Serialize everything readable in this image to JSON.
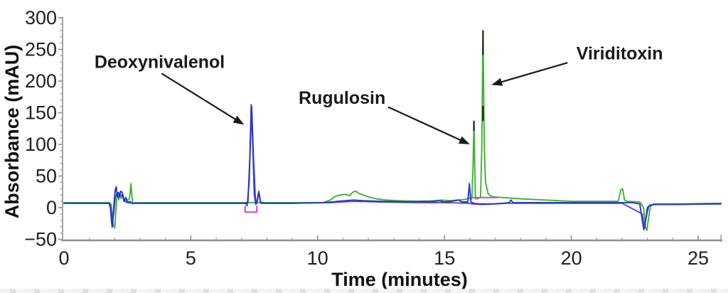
{
  "figure": {
    "kind": "HPLC chromatogram",
    "bottom_edge_note": "faint cropped content edge"
  },
  "chart_data": {
    "type": "line",
    "title": "",
    "xlabel": "Time (minutes)",
    "ylabel": "Absorbance (mAU)",
    "xlim": [
      0,
      25.9
    ],
    "ylim": [
      -50,
      300
    ],
    "x_ticks_major": [
      0,
      5,
      10,
      15,
      20,
      25
    ],
    "x_tick_labels": [
      "0",
      "5",
      "10",
      "15",
      "20",
      "25"
    ],
    "x_minor_step": 1,
    "y_ticks_major": [
      -50,
      0,
      50,
      100,
      150,
      200,
      250,
      300
    ],
    "y_tick_labels": [
      "−50",
      "0",
      "50",
      "100",
      "150",
      "200",
      "250",
      "300"
    ],
    "y_minor_step": 10,
    "grid": false,
    "legend": "none",
    "colors": {
      "axis": "#a3a3a3",
      "axis_bottom": "#8f8f8f",
      "tick": "#9a9a9a",
      "tick_label": "#1f1f1f",
      "annotation_text": "#1a1a1a",
      "arrow": "#1a1a1a"
    },
    "series": [
      {
        "name": "green-trace",
        "color": "#3cb42c",
        "points": [
          [
            0,
            8
          ],
          [
            1.8,
            8
          ],
          [
            1.86,
            5
          ],
          [
            1.9,
            -12
          ],
          [
            1.95,
            -28
          ],
          [
            2.0,
            -32
          ],
          [
            2.04,
            -8
          ],
          [
            2.08,
            14
          ],
          [
            2.12,
            20
          ],
          [
            2.16,
            12
          ],
          [
            2.2,
            24
          ],
          [
            2.25,
            14
          ],
          [
            2.3,
            22
          ],
          [
            2.36,
            16
          ],
          [
            2.42,
            10
          ],
          [
            2.5,
            12
          ],
          [
            2.58,
            14
          ],
          [
            2.64,
            38
          ],
          [
            2.68,
            18
          ],
          [
            2.72,
            6
          ],
          [
            2.8,
            8
          ],
          [
            4,
            8
          ],
          [
            6,
            8
          ],
          [
            8,
            8
          ],
          [
            9.5,
            8
          ],
          [
            10.2,
            8
          ],
          [
            10.5,
            12
          ],
          [
            10.7,
            18
          ],
          [
            10.9,
            20
          ],
          [
            11.1,
            21
          ],
          [
            11.25,
            19
          ],
          [
            11.4,
            25
          ],
          [
            11.5,
            26
          ],
          [
            11.65,
            22
          ],
          [
            11.8,
            20
          ],
          [
            12.0,
            17
          ],
          [
            12.3,
            14
          ],
          [
            12.7,
            12
          ],
          [
            13.2,
            11
          ],
          [
            14.0,
            10
          ],
          [
            14.6,
            11
          ],
          [
            14.9,
            12
          ],
          [
            15.2,
            11
          ],
          [
            15.5,
            12
          ],
          [
            15.8,
            13
          ],
          [
            16.0,
            15
          ],
          [
            16.08,
            14
          ],
          [
            16.13,
            70
          ],
          [
            16.16,
            137
          ],
          [
            16.19,
            70
          ],
          [
            16.22,
            14
          ],
          [
            16.3,
            14
          ],
          [
            16.42,
            16
          ],
          [
            16.47,
            90
          ],
          [
            16.52,
            280
          ],
          [
            16.57,
            95
          ],
          [
            16.62,
            40
          ],
          [
            16.72,
            22
          ],
          [
            16.85,
            18
          ],
          [
            17.0,
            17
          ],
          [
            17.3,
            16
          ],
          [
            17.6,
            15
          ],
          [
            18.0,
            14
          ],
          [
            18.5,
            13
          ],
          [
            19.0,
            12
          ],
          [
            20.0,
            10
          ],
          [
            21.0,
            10
          ],
          [
            21.85,
            10
          ],
          [
            21.95,
            28
          ],
          [
            22.02,
            30
          ],
          [
            22.1,
            12
          ],
          [
            22.2,
            10
          ],
          [
            22.7,
            9
          ],
          [
            22.85,
            0
          ],
          [
            22.92,
            -30
          ],
          [
            22.98,
            -36
          ],
          [
            23.05,
            -15
          ],
          [
            23.12,
            2
          ],
          [
            23.25,
            6
          ],
          [
            23.6,
            6
          ],
          [
            24.5,
            6
          ],
          [
            25.9,
            7
          ]
        ]
      },
      {
        "name": "purple-trace",
        "color": "#6240d2",
        "points": [
          [
            0,
            7
          ],
          [
            1.8,
            7
          ],
          [
            1.86,
            -5
          ],
          [
            1.9,
            -25
          ],
          [
            1.96,
            -10
          ],
          [
            2.02,
            15
          ],
          [
            2.08,
            22
          ],
          [
            2.14,
            16
          ],
          [
            2.2,
            20
          ],
          [
            2.3,
            19
          ],
          [
            2.4,
            10
          ],
          [
            2.5,
            8
          ],
          [
            2.7,
            7
          ],
          [
            4,
            7
          ],
          [
            6,
            7
          ],
          [
            7.15,
            7
          ],
          [
            7.22,
            3
          ],
          [
            7.3,
            40
          ],
          [
            7.38,
            163
          ],
          [
            7.44,
            100
          ],
          [
            7.5,
            20
          ],
          [
            7.56,
            5
          ],
          [
            7.62,
            8
          ],
          [
            7.68,
            26
          ],
          [
            7.76,
            7
          ],
          [
            8,
            7
          ],
          [
            9,
            7
          ],
          [
            10.5,
            8
          ],
          [
            11.4,
            10
          ],
          [
            12.5,
            9
          ],
          [
            14,
            8
          ],
          [
            15,
            8
          ],
          [
            15.9,
            7
          ],
          [
            16.1,
            6
          ],
          [
            16.5,
            5
          ],
          [
            17,
            6
          ],
          [
            17.5,
            7
          ],
          [
            18,
            7
          ],
          [
            20,
            7
          ],
          [
            22,
            7
          ],
          [
            22.8,
            -10
          ],
          [
            22.88,
            -33
          ],
          [
            22.95,
            -15
          ],
          [
            23.05,
            2
          ],
          [
            23.2,
            5
          ],
          [
            24,
            5
          ],
          [
            25.9,
            6
          ]
        ]
      },
      {
        "name": "blue-trace",
        "color": "#2737c6",
        "points": [
          [
            0,
            7
          ],
          [
            1.78,
            7
          ],
          [
            1.83,
            0
          ],
          [
            1.87,
            -20
          ],
          [
            1.9,
            -31
          ],
          [
            1.94,
            -12
          ],
          [
            1.98,
            10
          ],
          [
            2.02,
            28
          ],
          [
            2.06,
            33
          ],
          [
            2.1,
            18
          ],
          [
            2.14,
            24
          ],
          [
            2.18,
            17
          ],
          [
            2.24,
            26
          ],
          [
            2.3,
            24
          ],
          [
            2.36,
            10
          ],
          [
            2.44,
            16
          ],
          [
            2.5,
            8
          ],
          [
            2.58,
            10
          ],
          [
            2.66,
            8
          ],
          [
            2.75,
            7
          ],
          [
            4,
            7
          ],
          [
            6,
            7
          ],
          [
            7.1,
            7
          ],
          [
            7.25,
            8
          ],
          [
            7.33,
            80
          ],
          [
            7.4,
            160
          ],
          [
            7.47,
            80
          ],
          [
            7.55,
            8
          ],
          [
            7.6,
            10
          ],
          [
            7.68,
            25
          ],
          [
            7.75,
            8
          ],
          [
            7.9,
            7
          ],
          [
            9,
            7
          ],
          [
            10.3,
            8
          ],
          [
            10.8,
            10
          ],
          [
            11.4,
            12
          ],
          [
            11.8,
            11
          ],
          [
            12.5,
            10
          ],
          [
            13.5,
            9
          ],
          [
            14.15,
            10
          ],
          [
            14.4,
            9
          ],
          [
            14.8,
            11
          ],
          [
            15.0,
            9
          ],
          [
            15.3,
            10
          ],
          [
            15.55,
            12
          ],
          [
            15.7,
            9
          ],
          [
            15.92,
            9
          ],
          [
            15.98,
            38
          ],
          [
            16.04,
            9
          ],
          [
            16.15,
            7
          ],
          [
            16.35,
            6
          ],
          [
            16.6,
            6
          ],
          [
            16.9,
            6
          ],
          [
            17.3,
            7
          ],
          [
            17.55,
            8
          ],
          [
            17.62,
            12
          ],
          [
            17.7,
            8
          ],
          [
            18.0,
            8
          ],
          [
            19,
            8
          ],
          [
            20,
            8
          ],
          [
            21,
            8
          ],
          [
            22,
            8
          ],
          [
            22.4,
            8
          ],
          [
            22.7,
            6
          ],
          [
            22.8,
            -20
          ],
          [
            22.86,
            -35
          ],
          [
            22.93,
            -20
          ],
          [
            23.0,
            0
          ],
          [
            23.1,
            4
          ],
          [
            23.3,
            5
          ],
          [
            24,
            5
          ],
          [
            25,
            6
          ],
          [
            25.9,
            6
          ]
        ]
      }
    ],
    "integration_marks": [
      {
        "name": "deoxynivalenol-integration-bracket",
        "color": "#d44fd4",
        "points": [
          [
            7.14,
            2
          ],
          [
            7.14,
            -7
          ],
          [
            7.6,
            -7
          ],
          [
            7.6,
            2
          ]
        ]
      },
      {
        "name": "rugulosin-viriditoxin-integration-baseline",
        "color": "#d44fd4",
        "points": [
          [
            16.08,
            16
          ],
          [
            17.08,
            16
          ]
        ]
      }
    ],
    "peak_markers": [
      {
        "name": "viriditoxin-apex-marker",
        "color": "#131313",
        "points": [
          [
            16.52,
            242
          ],
          [
            16.52,
            279
          ]
        ]
      },
      {
        "name": "viriditoxin-mid-marker",
        "color": "#131313",
        "points": [
          [
            16.52,
            138
          ],
          [
            16.52,
            160
          ]
        ]
      },
      {
        "name": "rugulosin-apex-marker",
        "color": "#131313",
        "points": [
          [
            16.16,
            122
          ],
          [
            16.16,
            136
          ]
        ]
      }
    ],
    "annotations": [
      {
        "label": "Deoxynivalenol",
        "anchor": "start",
        "label_x": 1.2,
        "label_y": 230,
        "arrow_from": [
          3.85,
          212
        ],
        "arrow_to": [
          7.1,
          131
        ]
      },
      {
        "label": "Rugulosin",
        "anchor": "start",
        "label_x": 9.25,
        "label_y": 173,
        "arrow_from": [
          12.78,
          159
        ],
        "arrow_to": [
          16.0,
          100
        ]
      },
      {
        "label": "Viriditoxin",
        "anchor": "start",
        "label_x": 20.2,
        "label_y": 243,
        "arrow_from": [
          19.85,
          229
        ],
        "arrow_to": [
          16.85,
          194
        ]
      }
    ],
    "peaks": [
      {
        "name": "Deoxynivalenol",
        "time_min": 7.4,
        "height_mau": 163,
        "trace": "purple-trace"
      },
      {
        "name": "Rugulosin",
        "time_min": 16.16,
        "height_mau": 137,
        "trace": "green-trace"
      },
      {
        "name": "Viriditoxin",
        "time_min": 16.52,
        "height_mau": 280,
        "trace": "green-trace"
      }
    ]
  }
}
